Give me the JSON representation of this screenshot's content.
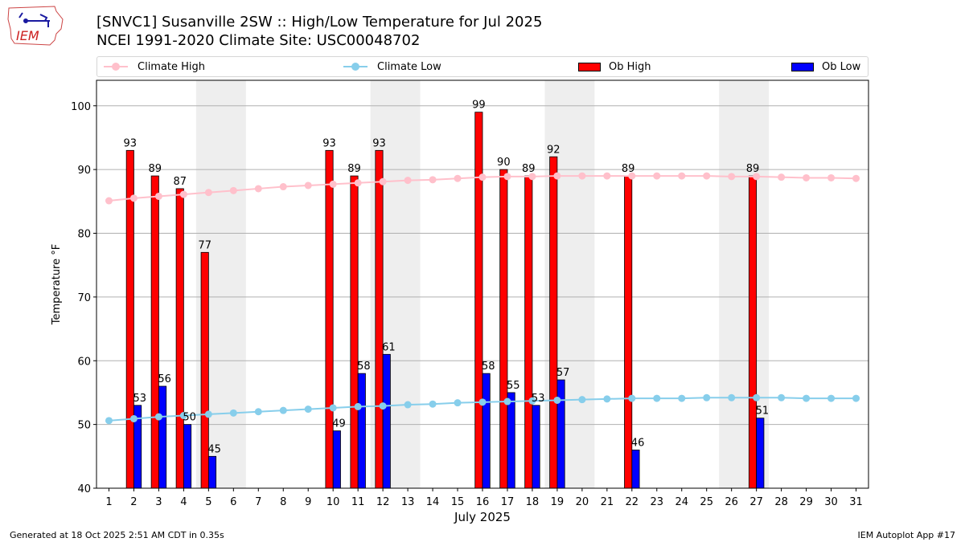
{
  "header": {
    "title_line1": "[SNVC1] Susanville 2SW :: High/Low Temperature for Jul 2025",
    "title_line2": "NCEI 1991-2020 Climate Site: USC00048702",
    "logo_text": "IEM"
  },
  "footer": {
    "generated": "Generated at 18 Oct 2025 2:51 AM CDT in 0.35s",
    "app": "IEM Autoplot App #17"
  },
  "colors": {
    "climate_high": "#ffc0cb",
    "climate_low": "#87ceeb",
    "ob_high": "#ff0000",
    "ob_low": "#0000ff",
    "weekend": "#eeeeee",
    "grid": "#b0b0b0"
  },
  "chart_data": {
    "type": "bar",
    "title": "[SNVC1] Susanville 2SW :: High/Low Temperature for Jul 2025",
    "subtitle": "NCEI 1991-2020 Climate Site: USC00048702",
    "xlabel": "July 2025",
    "ylabel": "Temperature °F",
    "xlim": [
      0.5,
      31.5
    ],
    "ylim": [
      40,
      104
    ],
    "yticks": [
      40,
      50,
      60,
      70,
      80,
      90,
      100
    ],
    "grid": true,
    "legend": {
      "placement": "top",
      "entries": [
        "Climate High",
        "Climate Low",
        "Ob High",
        "Ob Low"
      ]
    },
    "weekends": [
      [
        5,
        6
      ],
      [
        12,
        13
      ],
      [
        19,
        20
      ],
      [
        26,
        27
      ]
    ],
    "x": [
      1,
      2,
      3,
      4,
      5,
      6,
      7,
      8,
      9,
      10,
      11,
      12,
      13,
      14,
      15,
      16,
      17,
      18,
      19,
      20,
      21,
      22,
      23,
      24,
      25,
      26,
      27,
      28,
      29,
      30,
      31
    ],
    "series": [
      {
        "name": "Climate High",
        "kind": "line",
        "values": [
          85.1,
          85.5,
          85.8,
          86.1,
          86.4,
          86.7,
          87.0,
          87.3,
          87.5,
          87.7,
          87.9,
          88.1,
          88.3,
          88.4,
          88.6,
          88.8,
          88.9,
          88.9,
          89.0,
          89.0,
          89.0,
          89.0,
          89.0,
          89.0,
          89.0,
          88.9,
          88.9,
          88.8,
          88.7,
          88.7,
          88.6
        ]
      },
      {
        "name": "Climate Low",
        "kind": "line",
        "values": [
          50.6,
          50.9,
          51.2,
          51.4,
          51.6,
          51.8,
          52.0,
          52.2,
          52.4,
          52.6,
          52.8,
          52.9,
          53.1,
          53.2,
          53.4,
          53.5,
          53.6,
          53.7,
          53.8,
          53.9,
          54.0,
          54.1,
          54.1,
          54.1,
          54.2,
          54.2,
          54.2,
          54.2,
          54.1,
          54.1,
          54.1
        ]
      },
      {
        "name": "Ob High",
        "kind": "bar",
        "values": [
          null,
          93,
          89,
          87,
          77,
          null,
          null,
          null,
          null,
          93,
          89,
          93,
          null,
          null,
          null,
          99,
          90,
          89,
          92,
          null,
          null,
          89,
          null,
          null,
          null,
          null,
          89,
          null,
          null,
          null,
          null
        ]
      },
      {
        "name": "Ob Low",
        "kind": "bar",
        "values": [
          null,
          53,
          56,
          50,
          45,
          null,
          null,
          null,
          null,
          49,
          58,
          61,
          null,
          null,
          null,
          58,
          55,
          53,
          57,
          null,
          null,
          46,
          null,
          null,
          null,
          null,
          51,
          null,
          null,
          null,
          null
        ]
      }
    ]
  }
}
